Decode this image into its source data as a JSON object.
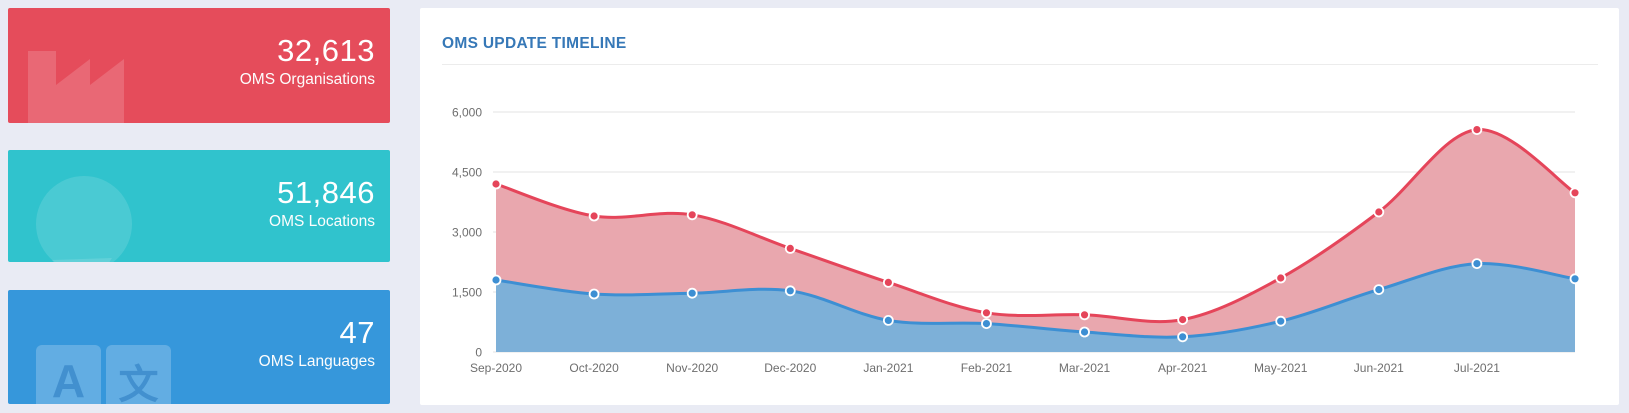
{
  "page": {
    "background": "#e9ebf4"
  },
  "stat_cards": [
    {
      "id": "organisations",
      "value": "32,613",
      "label": "OMS Organisations",
      "color": "#e54c5b",
      "icon": "factory-icon"
    },
    {
      "id": "locations",
      "value": "51,846",
      "label": "OMS Locations",
      "color": "#30c3cd",
      "icon": "map-pin-icon"
    },
    {
      "id": "languages",
      "value": "47",
      "label": "OMS Languages",
      "color": "#3697db",
      "icon": "translate-icon"
    }
  ],
  "language_tile_glyphs": {
    "latin": "A",
    "cjk": "文"
  },
  "chart_panel": {
    "title": "OMS UPDATE TIMELINE",
    "title_color": "#3678b7"
  },
  "chart_data": {
    "type": "area",
    "title": "OMS UPDATE TIMELINE",
    "categories": [
      "Sep-2020",
      "Oct-2020",
      "Nov-2020",
      "Dec-2020",
      "Jan-2021",
      "Feb-2021",
      "Mar-2021",
      "Apr-2021",
      "May-2021",
      "Jun-2021",
      "Jul-2021",
      ""
    ],
    "series": [
      {
        "name": "red-series",
        "line_color": "#e5455a",
        "fill_color": "#e9a7ae",
        "values": [
          4200,
          3400,
          3430,
          2590,
          1740,
          980,
          930,
          810,
          1850,
          3500,
          5560,
          3980
        ]
      },
      {
        "name": "blue-series",
        "line_color": "#3d8fd3",
        "fill_color": "#7db0d8",
        "values": [
          1800,
          1450,
          1470,
          1530,
          790,
          710,
          500,
          380,
          770,
          1560,
          2210,
          1830
        ]
      }
    ],
    "xlabel": "",
    "ylabel": "",
    "ylim": [
      0,
      6000
    ],
    "ytick_values": [
      0,
      1500,
      3000,
      4500,
      6000
    ],
    "yticks": [
      "0",
      "1,500",
      "3,000",
      "4,500",
      "6,000"
    ],
    "grid": "horizontal",
    "legend": "none",
    "layout_note": "last data point sits on plot right edge with no x-axis label"
  }
}
